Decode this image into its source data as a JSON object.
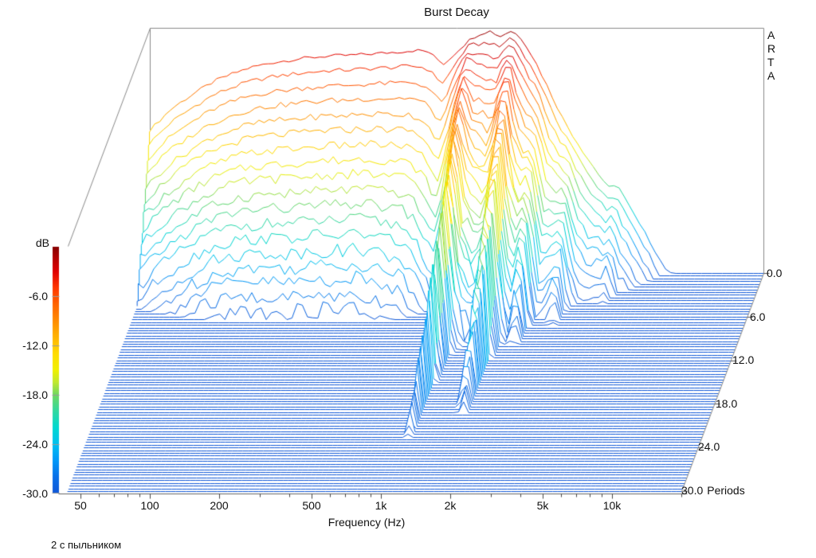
{
  "chart_data": {
    "type": "waterfall3d",
    "title": "Burst Decay",
    "watermark": "A\nR\nT\nA",
    "annotation": "2 с пыльником",
    "freq_axis": {
      "label": "Frequency (Hz)",
      "min": 44,
      "max": 20000,
      "log": true,
      "tick_values": [
        50,
        100,
        200,
        500,
        1000,
        2000,
        5000,
        10000
      ],
      "tick_labels": [
        "50",
        "100",
        "200",
        "500",
        "1k",
        "2k",
        "5k",
        "10k"
      ],
      "minor_ticks": [
        60,
        70,
        80,
        90,
        300,
        400,
        600,
        700,
        800,
        900,
        3000,
        4000,
        6000,
        7000,
        8000,
        9000,
        20000
      ]
    },
    "periods_axis": {
      "label": "Periods",
      "min": 0,
      "max": 30,
      "tick_values": [
        0,
        6,
        12,
        18,
        24,
        30
      ],
      "tick_labels": [
        "0.0",
        "6.0",
        "12.0",
        "18.0",
        "24.0",
        "30.0"
      ]
    },
    "db_axis": {
      "label": "dB",
      "min": -30,
      "max": 0,
      "tick_values": [
        -6,
        -12,
        -18,
        -24,
        -30
      ],
      "tick_labels": [
        "-6.0",
        "-12.0",
        "-18.0",
        "-24.0",
        "-30.0"
      ]
    },
    "colormap": [
      {
        "db": 0,
        "color": "#880000"
      },
      {
        "db": -1.5,
        "color": "#B80000"
      },
      {
        "db": -3,
        "color": "#E00000"
      },
      {
        "db": -5,
        "color": "#FF3800"
      },
      {
        "db": -7,
        "color": "#FF6400"
      },
      {
        "db": -9,
        "color": "#FF8C00"
      },
      {
        "db": -11,
        "color": "#FFB400"
      },
      {
        "db": -13,
        "color": "#FFDC00"
      },
      {
        "db": -15,
        "color": "#F0F000"
      },
      {
        "db": -16.5,
        "color": "#C0E830"
      },
      {
        "db": -18,
        "color": "#70D860"
      },
      {
        "db": -20,
        "color": "#30D8A0"
      },
      {
        "db": -22,
        "color": "#00D8D0"
      },
      {
        "db": -24,
        "color": "#00C0F0"
      },
      {
        "db": -26,
        "color": "#0098F8"
      },
      {
        "db": -28,
        "color": "#0870E8"
      },
      {
        "db": -30,
        "color": "#1058D8"
      }
    ],
    "surface": {
      "slices": 81,
      "points": 120,
      "fmin": 44,
      "fmax": 20000,
      "floor_db": -30,
      "noise_db_max": 1.5,
      "envelope_db": [
        [
          44,
          -12.5
        ],
        [
          55,
          -9.8
        ],
        [
          70,
          -7.8
        ],
        [
          85,
          -6.4
        ],
        [
          100,
          -5.6
        ],
        [
          120,
          -4.8
        ],
        [
          150,
          -4.2
        ],
        [
          200,
          -3.7
        ],
        [
          260,
          -3.4
        ],
        [
          330,
          -3.3
        ],
        [
          420,
          -3.1
        ],
        [
          520,
          -2.9
        ],
        [
          620,
          -2.7
        ],
        [
          700,
          -2.8
        ],
        [
          760,
          -3.6
        ],
        [
          820,
          -4.4
        ],
        [
          880,
          -3.7
        ],
        [
          950,
          -2.7
        ],
        [
          1050,
          -1.6
        ],
        [
          1150,
          -0.8
        ],
        [
          1300,
          -0.3
        ],
        [
          1450,
          -1.0
        ],
        [
          1600,
          -0.3
        ],
        [
          1750,
          -0.9
        ],
        [
          1900,
          -2.3
        ],
        [
          2100,
          -4.6
        ],
        [
          2400,
          -8.0
        ],
        [
          2700,
          -11.0
        ],
        [
          3000,
          -13.2
        ],
        [
          3400,
          -15.6
        ],
        [
          3800,
          -17.6
        ],
        [
          4300,
          -19.6
        ],
        [
          4700,
          -19.2
        ],
        [
          5200,
          -21.6
        ],
        [
          5800,
          -24.0
        ],
        [
          6300,
          -25.6
        ],
        [
          6900,
          -27.6
        ],
        [
          7400,
          -29.2
        ],
        [
          8000,
          -30
        ],
        [
          20000,
          -30
        ]
      ],
      "decay_periods_to_floor": [
        [
          44,
          8
        ],
        [
          100,
          8
        ],
        [
          200,
          7.5
        ],
        [
          400,
          7.5
        ],
        [
          600,
          7
        ],
        [
          760,
          6
        ],
        [
          820,
          5.5
        ],
        [
          900,
          7
        ],
        [
          1000,
          14
        ],
        [
          1060,
          25
        ],
        [
          1150,
          12
        ],
        [
          1300,
          10
        ],
        [
          1430,
          10
        ],
        [
          1550,
          15
        ],
        [
          1660,
          23
        ],
        [
          1800,
          11
        ],
        [
          2000,
          10
        ],
        [
          2150,
          13
        ],
        [
          2400,
          8
        ],
        [
          2700,
          10
        ],
        [
          2950,
          13.5
        ],
        [
          3200,
          9
        ],
        [
          3600,
          8
        ],
        [
          4000,
          10
        ],
        [
          4500,
          12
        ],
        [
          4900,
          8
        ],
        [
          5400,
          10
        ],
        [
          6000,
          8.5
        ],
        [
          6500,
          9
        ],
        [
          7000,
          6.5
        ],
        [
          7600,
          4
        ],
        [
          8000,
          2
        ],
        [
          20000,
          2
        ]
      ]
    }
  }
}
